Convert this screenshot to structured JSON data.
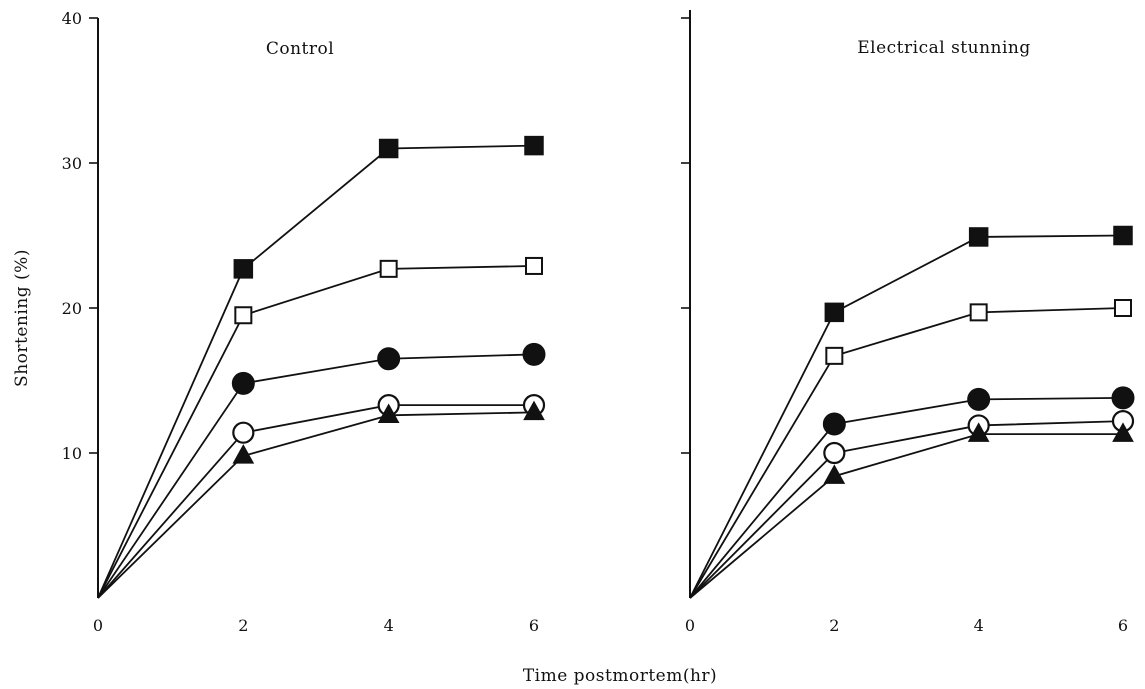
{
  "chart_data": {
    "type": "line",
    "xlabel": "Time postmortem(hr)",
    "ylabel": "Shortening (%)",
    "ylim": [
      0,
      40
    ],
    "xlim": [
      0,
      6
    ],
    "x_ticks": [
      0,
      2,
      4,
      6
    ],
    "y_ticks": [
      10,
      20,
      30,
      40
    ],
    "grid": false,
    "panels": [
      {
        "title": "Control",
        "x": [
          0,
          2,
          4,
          6
        ],
        "series": [
          {
            "marker": "filled-square",
            "values": [
              0,
              22.7,
              31,
              31.2
            ]
          },
          {
            "marker": "open-square",
            "values": [
              0,
              19.5,
              22.7,
              22.9
            ]
          },
          {
            "marker": "filled-circle",
            "values": [
              0,
              14.8,
              16.5,
              16.8
            ]
          },
          {
            "marker": "open-circle",
            "values": [
              0,
              11.4,
              13.3,
              13.3
            ]
          },
          {
            "marker": "filled-triangle",
            "values": [
              0,
              9.8,
              12.6,
              12.8
            ]
          }
        ]
      },
      {
        "title": "Electrical stunning",
        "x": [
          0,
          2,
          4,
          6
        ],
        "series": [
          {
            "marker": "filled-square",
            "values": [
              0,
              19.7,
              24.9,
              25
            ]
          },
          {
            "marker": "open-square",
            "values": [
              0,
              16.7,
              19.7,
              20
            ]
          },
          {
            "marker": "filled-circle",
            "values": [
              0,
              12,
              13.7,
              13.8
            ]
          },
          {
            "marker": "open-circle",
            "values": [
              0,
              10,
              11.9,
              12.2
            ]
          },
          {
            "marker": "filled-triangle",
            "values": [
              0,
              8.4,
              11.3,
              11.3
            ]
          }
        ]
      }
    ]
  }
}
